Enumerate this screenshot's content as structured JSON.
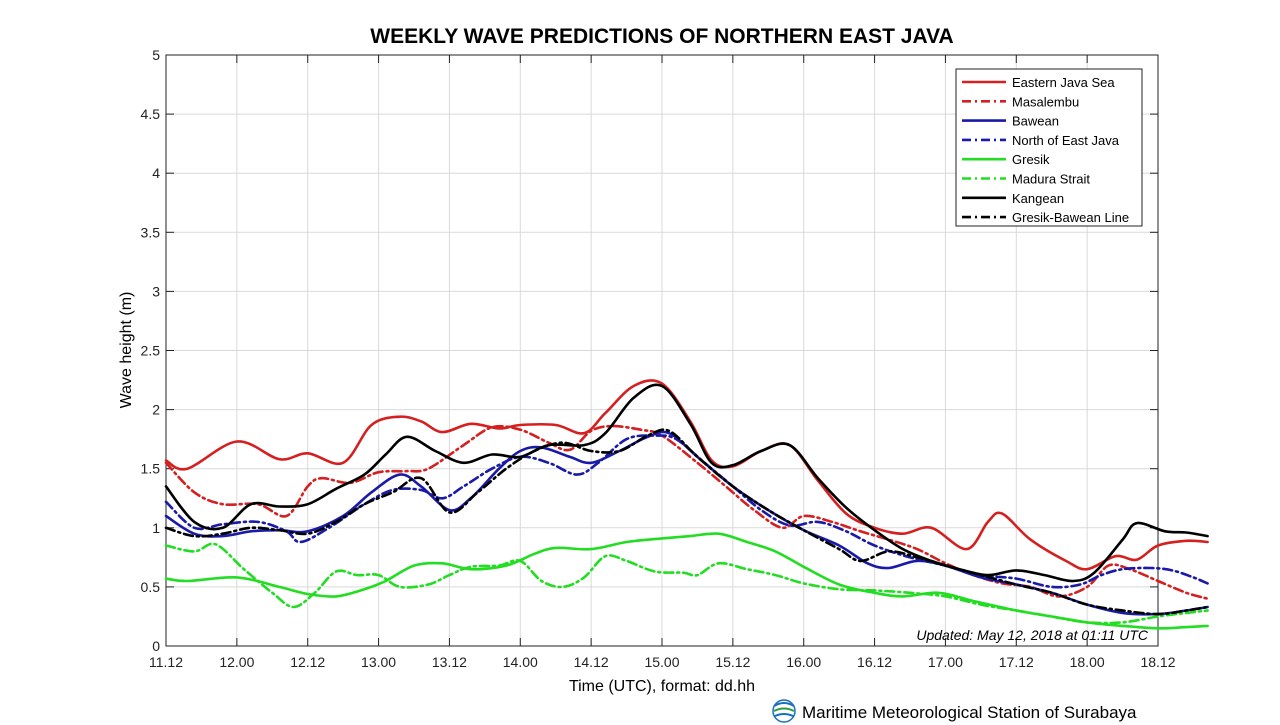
{
  "chart_data": {
    "type": "line",
    "title": "WEEKLY WAVE PREDICTIONS OF NORTHERN EAST JAVA",
    "xlabel": "Time (UTC), format: dd.hh",
    "ylabel": "Wave height (m)",
    "ylim": [
      0,
      5
    ],
    "yticks": [
      "0",
      "0.5",
      "1",
      "1.5",
      "2",
      "2.5",
      "3",
      "3.5",
      "4",
      "4.5",
      "5"
    ],
    "xticks": [
      "11.12",
      "12.00",
      "12.12",
      "13.00",
      "13.12",
      "14.00",
      "14.12",
      "15.00",
      "15.12",
      "16.00",
      "16.12",
      "17.00",
      "17.12",
      "18.00",
      "18.12"
    ],
    "grid": true,
    "legend_position": "top-right",
    "series": [
      {
        "name": "Eastern Java Sea",
        "color": "#d42020",
        "dash": "solid",
        "values": [
          [
            0,
            1.57
          ],
          [
            0.3,
            1.5
          ],
          [
            1,
            1.73
          ],
          [
            1.6,
            1.58
          ],
          [
            2,
            1.63
          ],
          [
            2.5,
            1.55
          ],
          [
            2.9,
            1.87
          ],
          [
            3.3,
            1.94
          ],
          [
            3.6,
            1.9
          ],
          [
            3.9,
            1.81
          ],
          [
            4.3,
            1.88
          ],
          [
            4.7,
            1.84
          ],
          [
            5,
            1.87
          ],
          [
            5.5,
            1.87
          ],
          [
            5.9,
            1.8
          ],
          [
            6.2,
            1.97
          ],
          [
            6.6,
            2.2
          ],
          [
            7,
            2.22
          ],
          [
            7.4,
            1.9
          ],
          [
            7.7,
            1.57
          ],
          [
            8,
            1.52
          ],
          [
            8.4,
            1.65
          ],
          [
            8.8,
            1.7
          ],
          [
            9.2,
            1.4
          ],
          [
            9.6,
            1.12
          ],
          [
            10,
            1.0
          ],
          [
            10.4,
            0.95
          ],
          [
            10.8,
            1.0
          ],
          [
            11.3,
            0.82
          ],
          [
            11.6,
            1.05
          ],
          [
            11.8,
            1.12
          ],
          [
            12.2,
            0.9
          ],
          [
            12.7,
            0.72
          ],
          [
            13,
            0.65
          ],
          [
            13.4,
            0.76
          ],
          [
            13.7,
            0.73
          ],
          [
            14,
            0.85
          ],
          [
            14.4,
            0.89
          ],
          [
            14.7,
            0.88
          ]
        ]
      },
      {
        "name": "Masalembu",
        "color": "#d42020",
        "dash": "dashdot",
        "values": [
          [
            0,
            1.55
          ],
          [
            0.4,
            1.3
          ],
          [
            0.8,
            1.2
          ],
          [
            1.3,
            1.2
          ],
          [
            1.7,
            1.1
          ],
          [
            2,
            1.35
          ],
          [
            2.2,
            1.42
          ],
          [
            2.6,
            1.38
          ],
          [
            3,
            1.47
          ],
          [
            3.4,
            1.48
          ],
          [
            3.7,
            1.5
          ],
          [
            4.2,
            1.7
          ],
          [
            4.6,
            1.85
          ],
          [
            5,
            1.83
          ],
          [
            5.4,
            1.72
          ],
          [
            5.7,
            1.66
          ],
          [
            6,
            1.82
          ],
          [
            6.3,
            1.86
          ],
          [
            6.7,
            1.83
          ],
          [
            7,
            1.78
          ],
          [
            7.5,
            1.55
          ],
          [
            7.9,
            1.35
          ],
          [
            8.3,
            1.15
          ],
          [
            8.7,
            1.0
          ],
          [
            9,
            1.1
          ],
          [
            9.4,
            1.05
          ],
          [
            9.8,
            0.97
          ],
          [
            10.2,
            0.9
          ],
          [
            10.6,
            0.82
          ],
          [
            11,
            0.7
          ],
          [
            11.4,
            0.6
          ],
          [
            11.8,
            0.53
          ],
          [
            12.2,
            0.5
          ],
          [
            12.6,
            0.42
          ],
          [
            13,
            0.5
          ],
          [
            13.3,
            0.68
          ],
          [
            13.6,
            0.65
          ],
          [
            14,
            0.55
          ],
          [
            14.4,
            0.45
          ],
          [
            14.7,
            0.4
          ]
        ]
      },
      {
        "name": "Bawean",
        "color": "#1a1aa8",
        "dash": "solid",
        "values": [
          [
            0,
            1.1
          ],
          [
            0.4,
            0.95
          ],
          [
            0.8,
            0.93
          ],
          [
            1.2,
            0.97
          ],
          [
            1.6,
            0.98
          ],
          [
            2,
            0.97
          ],
          [
            2.5,
            1.1
          ],
          [
            2.9,
            1.3
          ],
          [
            3.3,
            1.45
          ],
          [
            3.6,
            1.35
          ],
          [
            4,
            1.15
          ],
          [
            4.3,
            1.25
          ],
          [
            4.7,
            1.5
          ],
          [
            5,
            1.65
          ],
          [
            5.3,
            1.68
          ],
          [
            5.7,
            1.6
          ],
          [
            6,
            1.55
          ],
          [
            6.4,
            1.65
          ],
          [
            6.8,
            1.77
          ],
          [
            7.1,
            1.8
          ],
          [
            7.5,
            1.6
          ],
          [
            8,
            1.35
          ],
          [
            8.5,
            1.15
          ],
          [
            9,
            0.98
          ],
          [
            9.5,
            0.85
          ],
          [
            9.9,
            0.7
          ],
          [
            10.2,
            0.66
          ],
          [
            10.6,
            0.72
          ],
          [
            11,
            0.68
          ],
          [
            11.5,
            0.58
          ],
          [
            12,
            0.52
          ],
          [
            12.5,
            0.45
          ],
          [
            13,
            0.35
          ],
          [
            13.5,
            0.28
          ],
          [
            14,
            0.27
          ],
          [
            14.4,
            0.3
          ],
          [
            14.7,
            0.33
          ]
        ]
      },
      {
        "name": "North of East Java",
        "color": "#1a1aa8",
        "dash": "dashdot",
        "values": [
          [
            0,
            1.22
          ],
          [
            0.4,
            1.0
          ],
          [
            0.8,
            1.03
          ],
          [
            1.3,
            1.05
          ],
          [
            1.7,
            0.97
          ],
          [
            1.9,
            0.88
          ],
          [
            2.3,
            1.0
          ],
          [
            2.8,
            1.2
          ],
          [
            3.2,
            1.32
          ],
          [
            3.6,
            1.32
          ],
          [
            3.9,
            1.25
          ],
          [
            4.2,
            1.35
          ],
          [
            4.6,
            1.5
          ],
          [
            5,
            1.6
          ],
          [
            5.4,
            1.55
          ],
          [
            5.8,
            1.45
          ],
          [
            6.1,
            1.55
          ],
          [
            6.5,
            1.75
          ],
          [
            6.9,
            1.78
          ],
          [
            7.2,
            1.75
          ],
          [
            7.6,
            1.55
          ],
          [
            8,
            1.35
          ],
          [
            8.4,
            1.15
          ],
          [
            8.8,
            1.02
          ],
          [
            9.2,
            1.05
          ],
          [
            9.6,
            0.97
          ],
          [
            10,
            0.85
          ],
          [
            10.5,
            0.75
          ],
          [
            11,
            0.68
          ],
          [
            11.5,
            0.6
          ],
          [
            12,
            0.57
          ],
          [
            12.5,
            0.5
          ],
          [
            12.9,
            0.52
          ],
          [
            13.2,
            0.6
          ],
          [
            13.5,
            0.65
          ],
          [
            13.9,
            0.66
          ],
          [
            14.2,
            0.64
          ],
          [
            14.5,
            0.58
          ],
          [
            14.7,
            0.53
          ]
        ]
      },
      {
        "name": "Gresik",
        "color": "#22dd22",
        "dash": "solid",
        "values": [
          [
            0,
            0.57
          ],
          [
            0.3,
            0.55
          ],
          [
            1,
            0.58
          ],
          [
            1.6,
            0.5
          ],
          [
            2,
            0.44
          ],
          [
            2.4,
            0.42
          ],
          [
            2.8,
            0.48
          ],
          [
            3.1,
            0.55
          ],
          [
            3.5,
            0.68
          ],
          [
            3.9,
            0.7
          ],
          [
            4.3,
            0.65
          ],
          [
            4.8,
            0.68
          ],
          [
            5.2,
            0.78
          ],
          [
            5.5,
            0.83
          ],
          [
            6,
            0.82
          ],
          [
            6.5,
            0.88
          ],
          [
            7,
            0.91
          ],
          [
            7.4,
            0.93
          ],
          [
            7.8,
            0.95
          ],
          [
            8.2,
            0.88
          ],
          [
            8.6,
            0.8
          ],
          [
            9,
            0.67
          ],
          [
            9.5,
            0.52
          ],
          [
            10,
            0.45
          ],
          [
            10.4,
            0.42
          ],
          [
            10.9,
            0.45
          ],
          [
            11.4,
            0.38
          ],
          [
            12,
            0.3
          ],
          [
            12.5,
            0.25
          ],
          [
            13,
            0.2
          ],
          [
            13.5,
            0.17
          ],
          [
            14,
            0.15
          ],
          [
            14.4,
            0.16
          ],
          [
            14.7,
            0.17
          ]
        ]
      },
      {
        "name": "Madura Strait",
        "color": "#22dd22",
        "dash": "dashdot",
        "values": [
          [
            0,
            0.85
          ],
          [
            0.4,
            0.8
          ],
          [
            0.7,
            0.86
          ],
          [
            1.1,
            0.65
          ],
          [
            1.5,
            0.45
          ],
          [
            1.8,
            0.33
          ],
          [
            2.1,
            0.45
          ],
          [
            2.4,
            0.63
          ],
          [
            2.7,
            0.6
          ],
          [
            3,
            0.6
          ],
          [
            3.3,
            0.5
          ],
          [
            3.7,
            0.52
          ],
          [
            4,
            0.6
          ],
          [
            4.3,
            0.67
          ],
          [
            4.7,
            0.68
          ],
          [
            5,
            0.72
          ],
          [
            5.3,
            0.55
          ],
          [
            5.6,
            0.5
          ],
          [
            5.9,
            0.58
          ],
          [
            6.2,
            0.76
          ],
          [
            6.5,
            0.72
          ],
          [
            6.9,
            0.63
          ],
          [
            7.3,
            0.62
          ],
          [
            7.5,
            0.6
          ],
          [
            7.8,
            0.7
          ],
          [
            8.2,
            0.65
          ],
          [
            8.6,
            0.6
          ],
          [
            9,
            0.53
          ],
          [
            9.5,
            0.48
          ],
          [
            10,
            0.47
          ],
          [
            10.5,
            0.45
          ],
          [
            11,
            0.42
          ],
          [
            11.5,
            0.35
          ],
          [
            12,
            0.3
          ],
          [
            12.5,
            0.25
          ],
          [
            13,
            0.2
          ],
          [
            13.5,
            0.2
          ],
          [
            14,
            0.25
          ],
          [
            14.4,
            0.28
          ],
          [
            14.7,
            0.3
          ]
        ]
      },
      {
        "name": "Kangean",
        "color": "#000000",
        "dash": "solid",
        "values": [
          [
            0,
            1.35
          ],
          [
            0.4,
            1.05
          ],
          [
            0.8,
            1.0
          ],
          [
            1.2,
            1.2
          ],
          [
            1.6,
            1.18
          ],
          [
            2,
            1.2
          ],
          [
            2.4,
            1.33
          ],
          [
            2.8,
            1.45
          ],
          [
            3.1,
            1.62
          ],
          [
            3.4,
            1.77
          ],
          [
            3.8,
            1.65
          ],
          [
            4.2,
            1.55
          ],
          [
            4.6,
            1.62
          ],
          [
            5,
            1.6
          ],
          [
            5.4,
            1.7
          ],
          [
            5.9,
            1.7
          ],
          [
            6.2,
            1.8
          ],
          [
            6.6,
            2.1
          ],
          [
            7,
            2.2
          ],
          [
            7.4,
            1.88
          ],
          [
            7.7,
            1.55
          ],
          [
            8,
            1.53
          ],
          [
            8.4,
            1.65
          ],
          [
            8.8,
            1.7
          ],
          [
            9.2,
            1.42
          ],
          [
            9.6,
            1.17
          ],
          [
            10,
            0.98
          ],
          [
            10.4,
            0.82
          ],
          [
            10.8,
            0.72
          ],
          [
            11.2,
            0.65
          ],
          [
            11.6,
            0.6
          ],
          [
            12,
            0.64
          ],
          [
            12.4,
            0.6
          ],
          [
            12.8,
            0.55
          ],
          [
            13.1,
            0.62
          ],
          [
            13.5,
            0.9
          ],
          [
            13.7,
            1.04
          ],
          [
            14.1,
            0.97
          ],
          [
            14.4,
            0.96
          ],
          [
            14.7,
            0.93
          ]
        ]
      },
      {
        "name": "Gresik-Bawean Line",
        "color": "#000000",
        "dash": "dashdot",
        "values": [
          [
            0,
            1.0
          ],
          [
            0.4,
            0.93
          ],
          [
            0.8,
            0.95
          ],
          [
            1.2,
            1.0
          ],
          [
            1.6,
            0.98
          ],
          [
            2,
            0.95
          ],
          [
            2.4,
            1.05
          ],
          [
            2.8,
            1.2
          ],
          [
            3.2,
            1.3
          ],
          [
            3.6,
            1.42
          ],
          [
            4,
            1.13
          ],
          [
            4.4,
            1.3
          ],
          [
            4.8,
            1.5
          ],
          [
            5.2,
            1.65
          ],
          [
            5.6,
            1.72
          ],
          [
            6,
            1.65
          ],
          [
            6.4,
            1.65
          ],
          [
            6.8,
            1.78
          ],
          [
            7.1,
            1.82
          ],
          [
            7.5,
            1.6
          ],
          [
            8,
            1.35
          ],
          [
            8.5,
            1.15
          ],
          [
            9,
            0.98
          ],
          [
            9.5,
            0.82
          ],
          [
            9.8,
            0.72
          ],
          [
            10.2,
            0.8
          ],
          [
            10.6,
            0.75
          ],
          [
            11,
            0.68
          ],
          [
            11.5,
            0.6
          ],
          [
            12,
            0.52
          ],
          [
            12.5,
            0.45
          ],
          [
            13,
            0.35
          ],
          [
            13.5,
            0.3
          ],
          [
            14,
            0.27
          ],
          [
            14.4,
            0.3
          ],
          [
            14.7,
            0.33
          ]
        ]
      }
    ],
    "annotation": "Updated: May 12, 2018 at 01:11 UTC"
  },
  "footer": {
    "station": "Maritime Meteorological Station of Surabaya",
    "logo_icon": "bmkg-logo-icon"
  }
}
